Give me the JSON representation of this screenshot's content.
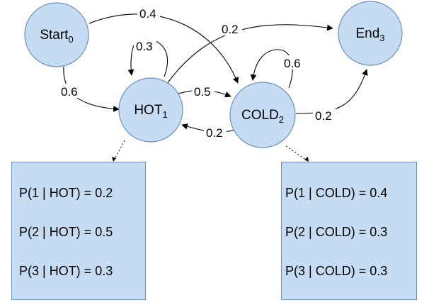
{
  "nodes": {
    "start": {
      "label": "Start",
      "sub": "0"
    },
    "hot": {
      "label": "HOT",
      "sub": "1"
    },
    "cold": {
      "label": "COLD",
      "sub": "2"
    },
    "end": {
      "label": "End",
      "sub": "3"
    }
  },
  "edges": {
    "start_cold": "0.4",
    "hot_end": "0.2",
    "hot_self": "0.3",
    "cold_self": "0.6",
    "start_hot": "0.6",
    "hot_cold": "0.5",
    "cold_hot": "0.2",
    "cold_end": "0.2"
  },
  "emissions": {
    "hot": [
      "P(1 | HOT) = 0.2",
      "P(2 | HOT) = 0.5",
      "P(3 | HOT) = 0.3"
    ],
    "cold": [
      "P(1 | COLD) = 0.4",
      "P(2 | COLD) = 0.3",
      "P(3 | COLD) = 0.3"
    ]
  },
  "colors": {
    "node_fill": "#c6dcf3",
    "node_stroke": "#6c8ebf"
  }
}
